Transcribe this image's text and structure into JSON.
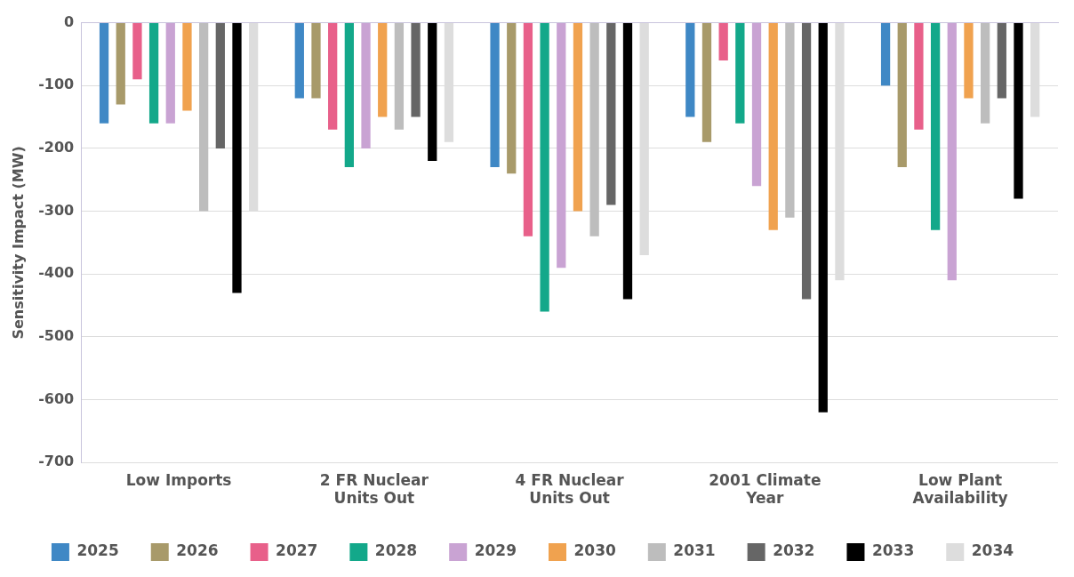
{
  "chart_data": {
    "type": "bar",
    "ylabel": "Sensitivity Impact (MW)",
    "categories": [
      "Low Imports",
      "2 FR Nuclear Units Out",
      "4 FR Nuclear Units Out",
      "2001 Climate Year",
      "Low Plant Availability"
    ],
    "series": [
      {
        "name": "2025",
        "color": "#3f88c5",
        "values": [
          -160,
          -120,
          -230,
          -150,
          -100
        ]
      },
      {
        "name": "2026",
        "color": "#a89a6a",
        "values": [
          -130,
          -120,
          -240,
          -190,
          -230
        ]
      },
      {
        "name": "2027",
        "color": "#e8608a",
        "values": [
          -90,
          -170,
          -340,
          -60,
          -170
        ]
      },
      {
        "name": "2028",
        "color": "#13a88a",
        "values": [
          -160,
          -230,
          -460,
          -160,
          -330
        ]
      },
      {
        "name": "2029",
        "color": "#c9a3d3",
        "values": [
          -160,
          -200,
          -390,
          -260,
          -410
        ]
      },
      {
        "name": "2030",
        "color": "#f0a24f",
        "values": [
          -140,
          -150,
          -300,
          -330,
          -120
        ]
      },
      {
        "name": "2031",
        "color": "#bdbdbd",
        "values": [
          -300,
          -170,
          -340,
          -310,
          -160
        ]
      },
      {
        "name": "2032",
        "color": "#666666",
        "values": [
          -200,
          -150,
          -290,
          -440,
          -120
        ]
      },
      {
        "name": "2033",
        "color": "#000000",
        "values": [
          -430,
          -220,
          -440,
          -620,
          -280
        ]
      },
      {
        "name": "2034",
        "color": "#dddddd",
        "values": [
          -300,
          -190,
          -370,
          -410,
          -150
        ]
      }
    ],
    "ylim": [
      -700,
      0
    ],
    "yticks": [
      -700,
      -600,
      -500,
      -400,
      -300,
      -200,
      -100,
      0
    ],
    "grid": "y",
    "legend": "bottom"
  }
}
